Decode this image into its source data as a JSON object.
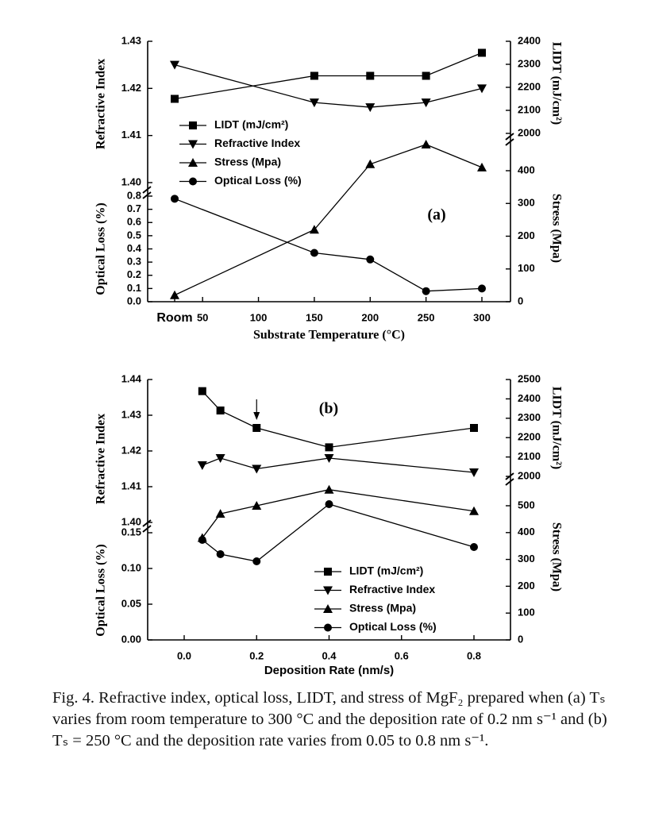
{
  "figure": {
    "caption": {
      "label": "Fig. 4.",
      "line1": "Refractive index, optical loss, LIDT, and stress of MgF₂",
      "line2": "prepared when (a) Tₛ varies from room temperature to 300 °C and",
      "line3": "the deposition rate of 0.2 nm s⁻¹ and (b) Tₛ = 250 °C and the",
      "line4": "deposition rate varies from 0.05 to 0.8 nm s⁻¹."
    }
  },
  "chart_data": [
    {
      "type": "line",
      "panel_label": "(a)",
      "xlabel": "Substrate Temperature (°C)",
      "x_ticks": [
        "Room",
        "50",
        "100",
        "150",
        "200",
        "250",
        "300"
      ],
      "x": [
        "Room",
        150,
        200,
        250,
        300
      ],
      "axes": {
        "left_top": {
          "label": "Refractive Index",
          "range": [
            1.4,
            1.43
          ],
          "ticks": [
            "1.40",
            "1.41",
            "1.42",
            "1.43"
          ]
        },
        "left_bottom": {
          "label": "Optical Loss (%)",
          "range": [
            0.0,
            0.8
          ],
          "ticks": [
            "0.0",
            "0.1",
            "0.2",
            "0.3",
            "0.4",
            "0.5",
            "0.6",
            "0.7",
            "0.8"
          ]
        },
        "right_top": {
          "label": "LIDT (mJ/cm²)",
          "range": [
            2000,
            2400
          ],
          "ticks": [
            "2000",
            "2100",
            "2200",
            "2300",
            "2400"
          ]
        },
        "right_bottom": {
          "label": "Stress (Mpa)",
          "range": [
            0,
            400
          ],
          "ticks": [
            "0",
            "100",
            "200",
            "300",
            "400"
          ]
        }
      },
      "series": [
        {
          "name": "LIDT (mJ/cm²)",
          "marker": "square",
          "axis": "right_top",
          "values": [
            2150,
            2250,
            2250,
            2250,
            2350
          ]
        },
        {
          "name": "Refractive Index",
          "marker": "triangle-down",
          "axis": "left_top",
          "values": [
            1.425,
            1.417,
            1.416,
            1.417,
            1.42
          ]
        },
        {
          "name": "Stress (Mpa)",
          "marker": "triangle-up",
          "axis": "right_bottom",
          "values": [
            20,
            220,
            420,
            480,
            410
          ]
        },
        {
          "name": "Optical Loss (%)",
          "marker": "circle",
          "axis": "left_bottom",
          "values": [
            0.78,
            0.37,
            0.32,
            0.08,
            0.1
          ]
        }
      ],
      "legend_position": "middle-left"
    },
    {
      "type": "line",
      "panel_label": "(b)",
      "xlabel": "Deposition Rate (nm/s)",
      "x_ticks": [
        "0.0",
        "0.2",
        "0.4",
        "0.6",
        "0.8"
      ],
      "x": [
        0.05,
        0.1,
        0.2,
        0.4,
        0.8
      ],
      "axes": {
        "left_top": {
          "label": "Refractive Index",
          "range": [
            1.4,
            1.44
          ],
          "ticks": [
            "1.40",
            "1.41",
            "1.42",
            "1.43",
            "1.44"
          ]
        },
        "left_bottom": {
          "label": "Optical Loss (%)",
          "range": [
            0.0,
            0.15
          ],
          "ticks": [
            "0.00",
            "0.05",
            "0.10",
            "0.15"
          ]
        },
        "right_top": {
          "label": "LIDT (mJ/cm²)",
          "range": [
            2000,
            2500
          ],
          "ticks": [
            "2000",
            "2100",
            "2200",
            "2300",
            "2400",
            "2500"
          ]
        },
        "right_bottom": {
          "label": "Stress (Mpa)",
          "range": [
            0,
            500
          ],
          "ticks": [
            "0",
            "100",
            "200",
            "300",
            "400",
            "500"
          ]
        }
      },
      "series": [
        {
          "name": "LIDT (mJ/cm²)",
          "marker": "square",
          "axis": "right_top",
          "values": [
            2440,
            2340,
            2250,
            2150,
            2250
          ]
        },
        {
          "name": "Refractive Index",
          "marker": "triangle-down",
          "axis": "left_top",
          "values": [
            1.416,
            1.418,
            1.415,
            1.418,
            1.414
          ]
        },
        {
          "name": "Stress (Mpa)",
          "marker": "triangle-up",
          "axis": "right_bottom",
          "values": [
            380,
            470,
            500,
            560,
            480
          ]
        },
        {
          "name": "Optical Loss (%)",
          "marker": "circle",
          "axis": "left_bottom",
          "values": [
            0.14,
            0.12,
            0.11,
            0.19,
            0.13
          ]
        }
      ],
      "annotation": {
        "type": "arrow",
        "x": 0.2
      },
      "legend_position": "bottom-right"
    }
  ]
}
